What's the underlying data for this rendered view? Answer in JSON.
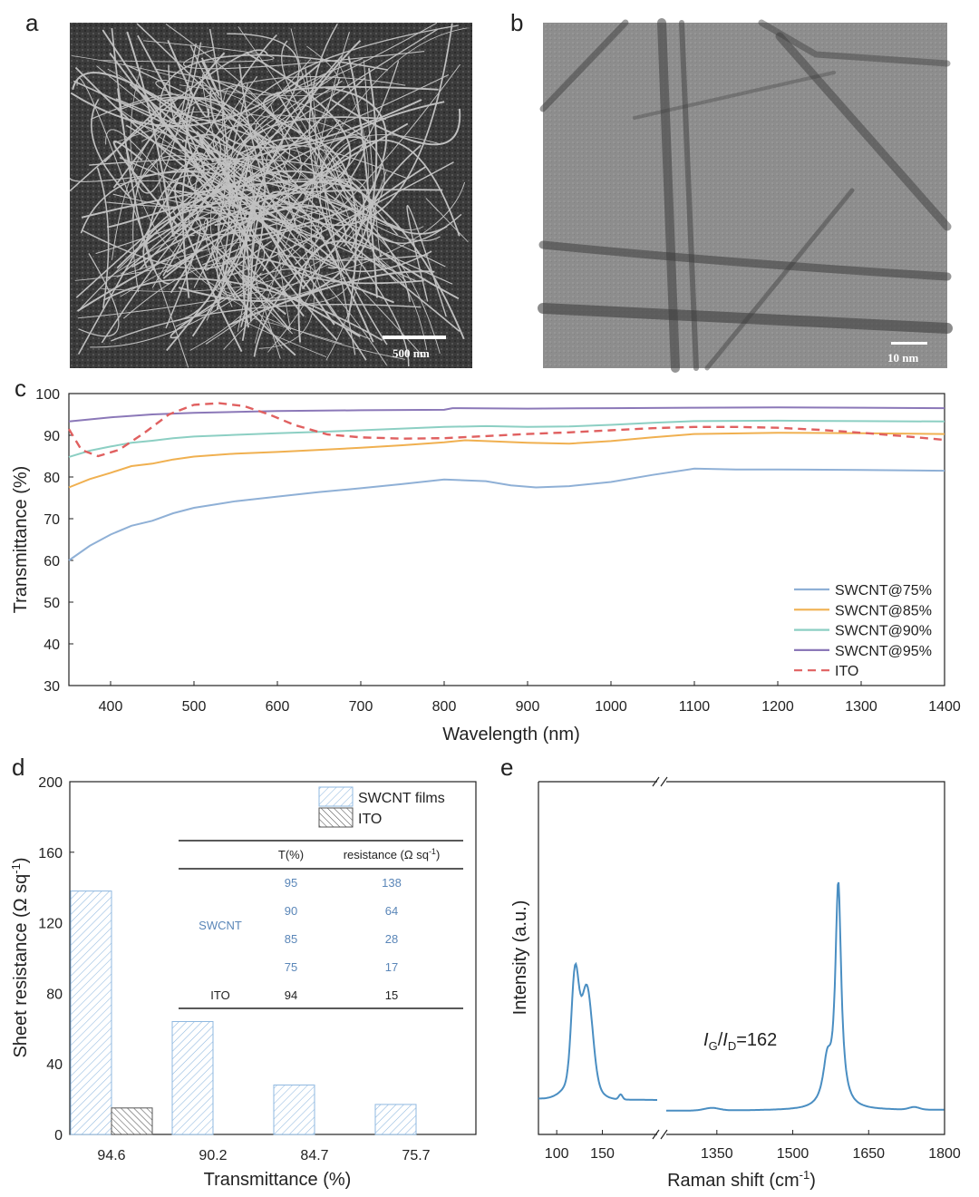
{
  "panels": {
    "a": {
      "label": "a",
      "scale_bar": "500 nm"
    },
    "b": {
      "label": "b",
      "scale_bar": "10 nm"
    },
    "c": {
      "label": "c"
    },
    "d": {
      "label": "d"
    },
    "e": {
      "label": "e"
    }
  },
  "colors": {
    "swcnt75": "#8fb0d6",
    "swcnt85": "#f0b050",
    "swcnt90": "#8ccfc3",
    "swcnt95": "#8b78b8",
    "ito": "#e06060",
    "bar_swcnt": "#8fb8e0",
    "bar_ito": "#555555",
    "raman": "#4a8ec2"
  },
  "chart_data": [
    {
      "panel": "c",
      "type": "line",
      "xlabel": "Wavelength (nm)",
      "ylabel": "Transmittance (%)",
      "xlim": [
        350,
        1400
      ],
      "ylim": [
        30,
        100
      ],
      "xticks": [
        400,
        500,
        600,
        700,
        800,
        900,
        1000,
        1100,
        1200,
        1300,
        1400
      ],
      "yticks": [
        30,
        40,
        50,
        60,
        70,
        80,
        90,
        100
      ],
      "legend_position": "bottom-right",
      "series": [
        {
          "name": "SWCNT@75%",
          "style": "solid",
          "color": "#8fb0d6",
          "points": [
            [
              350,
              60
            ],
            [
              375,
              63.5
            ],
            [
              400,
              66.2
            ],
            [
              425,
              68.3
            ],
            [
              450,
              69.5
            ],
            [
              475,
              71.3
            ],
            [
              500,
              72.6
            ],
            [
              525,
              73.4
            ],
            [
              550,
              74.2
            ],
            [
              600,
              75.3
            ],
            [
              650,
              76.4
            ],
            [
              700,
              77.3
            ],
            [
              750,
              78.3
            ],
            [
              800,
              79.4
            ],
            [
              850,
              79.0
            ],
            [
              880,
              78.0
            ],
            [
              910,
              77.5
            ],
            [
              950,
              77.8
            ],
            [
              1000,
              78.8
            ],
            [
              1050,
              80.5
            ],
            [
              1100,
              82.0
            ],
            [
              1150,
              81.8
            ],
            [
              1200,
              81.8
            ],
            [
              1300,
              81.7
            ],
            [
              1400,
              81.5
            ]
          ]
        },
        {
          "name": "SWCNT@85%",
          "style": "solid",
          "color": "#f0b050",
          "points": [
            [
              350,
              77.5
            ],
            [
              375,
              79.5
            ],
            [
              400,
              81
            ],
            [
              425,
              82.6
            ],
            [
              450,
              83.2
            ],
            [
              475,
              84.2
            ],
            [
              500,
              84.9
            ],
            [
              550,
              85.6
            ],
            [
              600,
              86.0
            ],
            [
              650,
              86.5
            ],
            [
              700,
              87.0
            ],
            [
              750,
              87.6
            ],
            [
              800,
              88.3
            ],
            [
              825,
              88.8
            ],
            [
              850,
              88.6
            ],
            [
              900,
              88.2
            ],
            [
              950,
              88.0
            ],
            [
              1000,
              88.6
            ],
            [
              1050,
              89.5
            ],
            [
              1100,
              90.3
            ],
            [
              1200,
              90.6
            ],
            [
              1300,
              90.5
            ],
            [
              1400,
              90.3
            ]
          ]
        },
        {
          "name": "SWCNT@90%",
          "style": "solid",
          "color": "#8ccfc3",
          "points": [
            [
              350,
              84.8
            ],
            [
              375,
              86.3
            ],
            [
              400,
              87.3
            ],
            [
              425,
              88.2
            ],
            [
              450,
              88.7
            ],
            [
              475,
              89.3
            ],
            [
              500,
              89.7
            ],
            [
              550,
              90.1
            ],
            [
              600,
              90.5
            ],
            [
              650,
              90.8
            ],
            [
              700,
              91.2
            ],
            [
              750,
              91.6
            ],
            [
              800,
              92.0
            ],
            [
              850,
              92.2
            ],
            [
              900,
              92.0
            ],
            [
              950,
              92.1
            ],
            [
              1000,
              92.5
            ],
            [
              1050,
              93.0
            ],
            [
              1100,
              93.4
            ],
            [
              1200,
              93.5
            ],
            [
              1300,
              93.4
            ],
            [
              1400,
              93.3
            ]
          ]
        },
        {
          "name": "SWCNT@95%",
          "style": "solid",
          "color": "#8b78b8",
          "points": [
            [
              350,
              93.3
            ],
            [
              400,
              94.3
            ],
            [
              450,
              95.0
            ],
            [
              500,
              95.4
            ],
            [
              600,
              95.8
            ],
            [
              700,
              96.0
            ],
            [
              800,
              96.1
            ],
            [
              810,
              96.5
            ],
            [
              900,
              96.4
            ],
            [
              1000,
              96.5
            ],
            [
              1100,
              96.6
            ],
            [
              1200,
              96.7
            ],
            [
              1300,
              96.6
            ],
            [
              1400,
              96.5
            ]
          ]
        },
        {
          "name": "ITO",
          "style": "dashed",
          "color": "#e06060",
          "points": [
            [
              350,
              91.5
            ],
            [
              365,
              86.5
            ],
            [
              385,
              85.0
            ],
            [
              410,
              86.5
            ],
            [
              440,
              90.5
            ],
            [
              470,
              95.0
            ],
            [
              500,
              97.3
            ],
            [
              530,
              97.7
            ],
            [
              560,
              97.0
            ],
            [
              590,
              95.0
            ],
            [
              620,
              92.5
            ],
            [
              660,
              90.2
            ],
            [
              700,
              89.5
            ],
            [
              750,
              89.2
            ],
            [
              800,
              89.3
            ],
            [
              850,
              89.8
            ],
            [
              900,
              90.3
            ],
            [
              950,
              90.7
            ],
            [
              1000,
              91.2
            ],
            [
              1050,
              91.7
            ],
            [
              1100,
              92.0
            ],
            [
              1150,
              92.0
            ],
            [
              1200,
              91.8
            ],
            [
              1250,
              91.3
            ],
            [
              1300,
              90.6
            ],
            [
              1350,
              89.8
            ],
            [
              1400,
              88.9
            ]
          ]
        }
      ]
    },
    {
      "panel": "d",
      "type": "bar",
      "xlabel": "Transmittance (%)",
      "ylabel": "Sheet resistance (Ω sq",
      "ylabel_sup": "-1",
      "ylabel_end": ")",
      "ylim": [
        0,
        200
      ],
      "yticks": [
        0,
        40,
        80,
        120,
        160,
        200
      ],
      "categories": [
        "94.6",
        "90.2",
        "84.7",
        "75.7"
      ],
      "series": [
        {
          "name": "SWCNT films",
          "values": [
            138,
            64,
            28,
            17
          ]
        },
        {
          "name": "ITO",
          "values": [
            15,
            null,
            null,
            null
          ]
        }
      ],
      "legend_position": "top-right",
      "table": {
        "headers": [
          "T(%)",
          "resistance (Ω sq",
          "-1",
          ")"
        ],
        "group_label": "SWCNT",
        "rows": [
          {
            "t": "95",
            "r": "138"
          },
          {
            "t": "90",
            "r": "64"
          },
          {
            "t": "85",
            "r": "28"
          },
          {
            "t": "75",
            "r": "17"
          }
        ],
        "ito_row": {
          "label": "ITO",
          "t": "94",
          "r": "15"
        }
      }
    },
    {
      "panel": "e",
      "type": "line",
      "xlabel": "Raman shift (cm",
      "xlabel_sup": "-1",
      "xlabel_end": ")",
      "ylabel": "Intensity (a.u.)",
      "xticks_left": [
        100,
        150
      ],
      "xticks_right": [
        1350,
        1500,
        1650,
        1800
      ],
      "broken_axis": true,
      "annotation": {
        "i": "I",
        "g": "G",
        "slash": "/",
        "d": "D",
        "value": "=162"
      },
      "peaks": [
        {
          "label": "RBM",
          "x": 125,
          "relative_height": 0.42
        },
        {
          "label": "D",
          "x": 1340,
          "relative_height": 0.01
        },
        {
          "label": "G",
          "x": 1590,
          "relative_height": 1.0
        }
      ]
    }
  ]
}
